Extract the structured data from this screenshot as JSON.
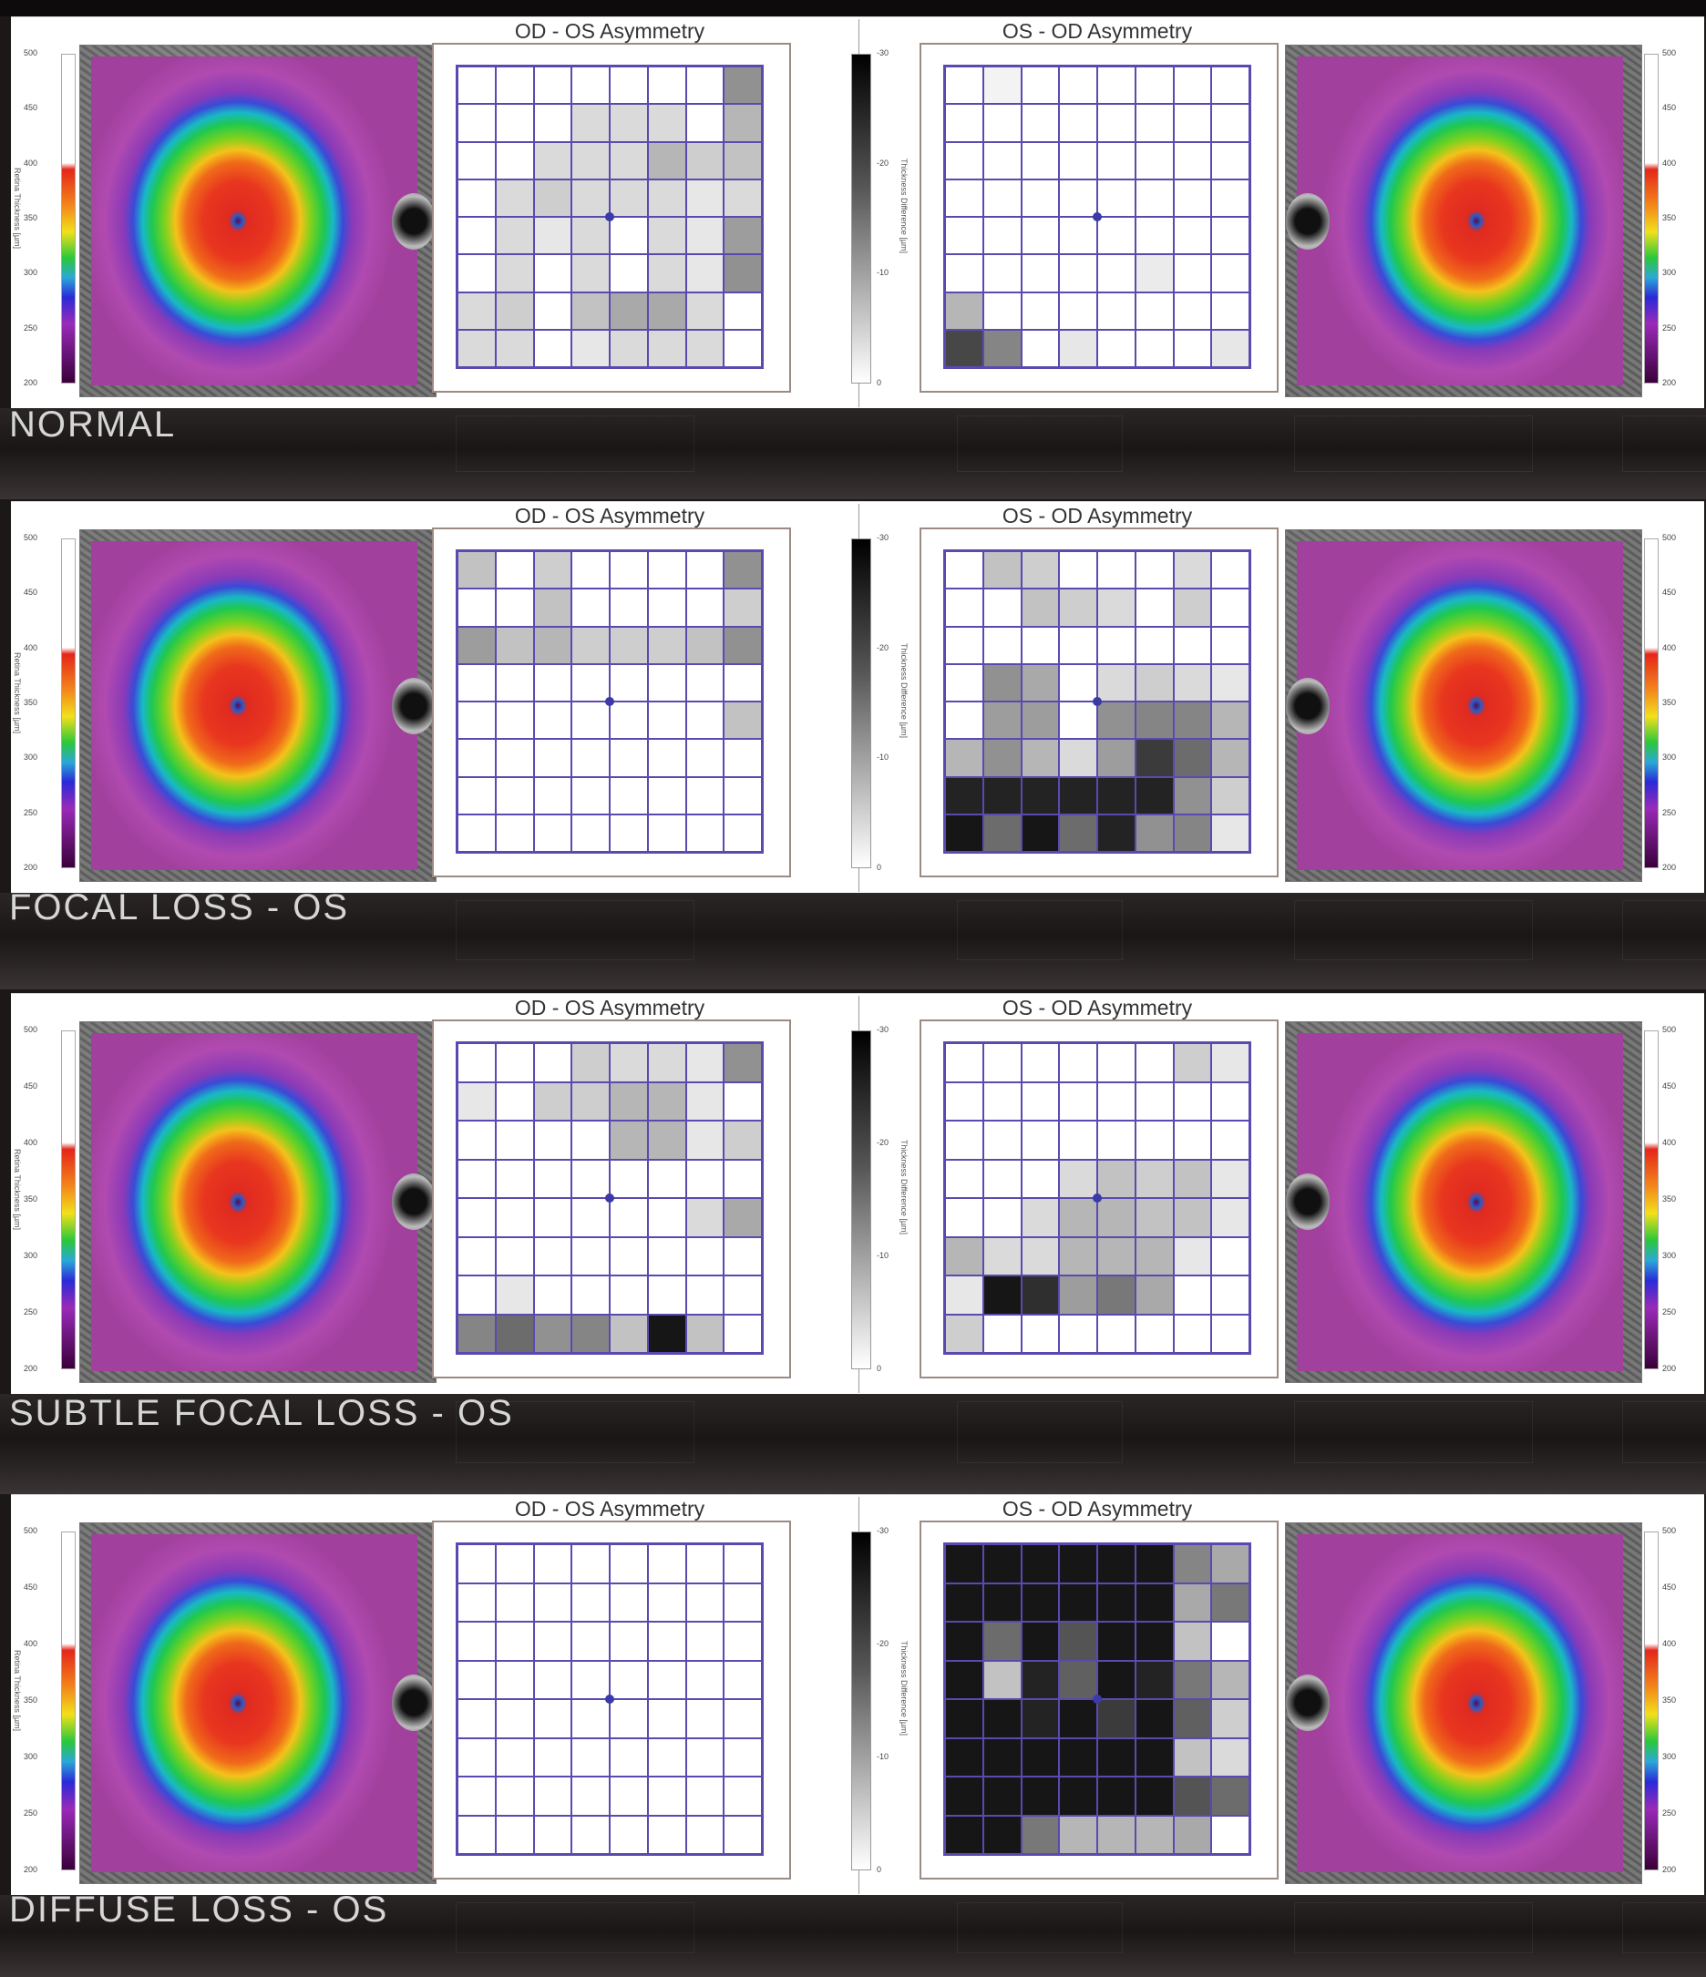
{
  "sections": [
    {
      "label": "NORMAL",
      "left_title": "OD - OS Asymmetry",
      "right_title": "OS - OD Asymmetry",
      "od_os_grid": [
        [
          0,
          0,
          0,
          0,
          0,
          0,
          0,
          0.45
        ],
        [
          0,
          0,
          0,
          0.15,
          0.15,
          0.15,
          0,
          0.3
        ],
        [
          0,
          0,
          0.15,
          0.15,
          0.15,
          0.3,
          0.2,
          0.25
        ],
        [
          0,
          0.15,
          0.2,
          0.15,
          0.15,
          0.15,
          0.1,
          0.15
        ],
        [
          0,
          0.15,
          0.1,
          0.15,
          0,
          0.15,
          0.1,
          0.4
        ],
        [
          0,
          0.15,
          0,
          0.15,
          0,
          0.15,
          0.1,
          0.45
        ],
        [
          0.15,
          0.2,
          0,
          0.25,
          0.35,
          0.35,
          0.15,
          0
        ],
        [
          0.15,
          0.15,
          0,
          0.1,
          0.15,
          0.15,
          0.15,
          0
        ]
      ],
      "os_od_grid": [
        [
          0,
          0.05,
          0,
          0,
          0,
          0,
          0,
          0
        ],
        [
          0,
          0,
          0,
          0,
          0,
          0,
          0,
          0
        ],
        [
          0,
          0,
          0,
          0,
          0,
          0,
          0,
          0
        ],
        [
          0,
          0,
          0,
          0,
          0,
          0,
          0,
          0
        ],
        [
          0,
          0,
          0,
          0,
          0,
          0,
          0,
          0
        ],
        [
          0,
          0,
          0,
          0,
          0,
          0.08,
          0,
          0
        ],
        [
          0.3,
          0,
          0,
          0,
          0,
          0,
          0,
          0
        ],
        [
          0.75,
          0.5,
          0,
          0.1,
          0,
          0,
          0,
          0.1
        ]
      ]
    },
    {
      "label": "FOCAL LOSS - OS",
      "left_title": "OD - OS Asymmetry",
      "right_title": "OS - OD Asymmetry",
      "od_os_grid": [
        [
          0.25,
          0,
          0.2,
          0,
          0,
          0,
          0,
          0.45
        ],
        [
          0,
          0,
          0.25,
          0,
          0,
          0,
          0,
          0.2
        ],
        [
          0.4,
          0.25,
          0.3,
          0.2,
          0.2,
          0.2,
          0.25,
          0.45
        ],
        [
          0,
          0,
          0,
          0,
          0,
          0,
          0,
          0
        ],
        [
          0,
          0,
          0,
          0,
          0,
          0,
          0,
          0.25
        ],
        [
          0,
          0,
          0,
          0,
          0,
          0,
          0,
          0
        ],
        [
          0,
          0,
          0,
          0,
          0,
          0,
          0,
          0
        ],
        [
          0,
          0,
          0,
          0,
          0,
          0,
          0,
          0
        ]
      ],
      "os_od_grid": [
        [
          0,
          0.25,
          0.2,
          0,
          0,
          0,
          0.15,
          0
        ],
        [
          0,
          0,
          0.25,
          0.2,
          0.15,
          0,
          0.2,
          0
        ],
        [
          0,
          0,
          0,
          0,
          0,
          0,
          0,
          0
        ],
        [
          0,
          0.45,
          0.35,
          0,
          0.15,
          0.2,
          0.15,
          0.1
        ],
        [
          0,
          0.4,
          0.4,
          0,
          0.45,
          0.5,
          0.5,
          0.3
        ],
        [
          0.3,
          0.45,
          0.3,
          0.15,
          0.4,
          0.8,
          0.6,
          0.3
        ],
        [
          0.9,
          0.9,
          0.9,
          0.9,
          0.9,
          0.9,
          0.45,
          0.2
        ],
        [
          0.95,
          0.6,
          0.95,
          0.6,
          0.9,
          0.45,
          0.5,
          0.1
        ]
      ]
    },
    {
      "label": "SUBTLE FOCAL LOSS - OS",
      "left_title": "OD - OS Asymmetry",
      "right_title": "OS - OD Asymmetry",
      "od_os_grid": [
        [
          0,
          0,
          0,
          0.2,
          0.15,
          0.15,
          0.1,
          0.45
        ],
        [
          0.1,
          0,
          0.2,
          0.2,
          0.3,
          0.3,
          0.1,
          0
        ],
        [
          0,
          0,
          0,
          0,
          0.3,
          0.3,
          0.1,
          0.2
        ],
        [
          0,
          0,
          0,
          0,
          0,
          0,
          0,
          0
        ],
        [
          0,
          0,
          0,
          0,
          0,
          0,
          0.15,
          0.35
        ],
        [
          0,
          0,
          0,
          0,
          0,
          0,
          0,
          0
        ],
        [
          0,
          0.1,
          0,
          0,
          0,
          0,
          0,
          0
        ],
        [
          0.5,
          0.6,
          0.45,
          0.5,
          0.25,
          0.95,
          0.25,
          0
        ]
      ],
      "os_od_grid": [
        [
          0,
          0,
          0,
          0,
          0,
          0,
          0.2,
          0.1
        ],
        [
          0,
          0,
          0,
          0,
          0,
          0,
          0,
          0
        ],
        [
          0,
          0,
          0,
          0,
          0,
          0,
          0,
          0
        ],
        [
          0,
          0,
          0,
          0.15,
          0.25,
          0.2,
          0.25,
          0.1
        ],
        [
          0,
          0,
          0.15,
          0.3,
          0.3,
          0.25,
          0.25,
          0.1
        ],
        [
          0.3,
          0.15,
          0.15,
          0.3,
          0.3,
          0.3,
          0.1,
          0
        ],
        [
          0.1,
          0.95,
          0.85,
          0.4,
          0.55,
          0.35,
          0,
          0
        ],
        [
          0.2,
          0,
          0,
          0,
          0,
          0,
          0,
          0
        ]
      ]
    },
    {
      "label": "DIFFUSE LOSS - OS",
      "left_title": "OD - OS Asymmetry",
      "right_title": "OS - OD Asymmetry",
      "od_os_grid": [
        [
          0,
          0,
          0,
          0,
          0,
          0,
          0,
          0
        ],
        [
          0,
          0,
          0,
          0,
          0,
          0,
          0,
          0
        ],
        [
          0,
          0,
          0,
          0,
          0,
          0,
          0,
          0
        ],
        [
          0,
          0,
          0,
          0,
          0,
          0,
          0,
          0
        ],
        [
          0,
          0,
          0,
          0,
          0,
          0,
          0,
          0
        ],
        [
          0,
          0,
          0,
          0,
          0,
          0,
          0,
          0
        ],
        [
          0,
          0,
          0,
          0,
          0,
          0,
          0,
          0
        ],
        [
          0,
          0,
          0,
          0,
          0,
          0,
          0,
          0
        ]
      ],
      "os_od_grid": [
        [
          0.95,
          0.95,
          0.95,
          0.95,
          0.95,
          0.95,
          0.5,
          0.35
        ],
        [
          0.95,
          0.95,
          0.95,
          0.95,
          0.95,
          0.95,
          0.35,
          0.55
        ],
        [
          0.95,
          0.6,
          0.95,
          0.7,
          0.95,
          0.95,
          0.25,
          0
        ],
        [
          0.95,
          0.25,
          0.9,
          0.65,
          0.95,
          0.9,
          0.55,
          0.3
        ],
        [
          0.95,
          0.95,
          0.9,
          0.95,
          0.8,
          0.95,
          0.65,
          0.2
        ],
        [
          0.95,
          0.95,
          0.95,
          0.95,
          0.95,
          0.95,
          0.25,
          0.15
        ],
        [
          0.95,
          0.95,
          0.95,
          0.95,
          0.95,
          0.95,
          0.7,
          0.6
        ],
        [
          0.95,
          0.95,
          0.55,
          0.3,
          0.3,
          0.3,
          0.35,
          0
        ]
      ]
    }
  ],
  "retina_scale": {
    "ticks": [
      "500",
      "450",
      "400",
      "350",
      "300",
      "250",
      "200"
    ],
    "title": "Retina Thickness [µm]"
  },
  "diff_scale": {
    "ticks": [
      "-30",
      "-20",
      "-10",
      "0"
    ],
    "title": "Thickness Difference [µm]"
  },
  "colors": {
    "grid_line": "#5a4ab0",
    "fovea_dot": "#3a3aa8",
    "label_text": "#d6d6d6"
  }
}
